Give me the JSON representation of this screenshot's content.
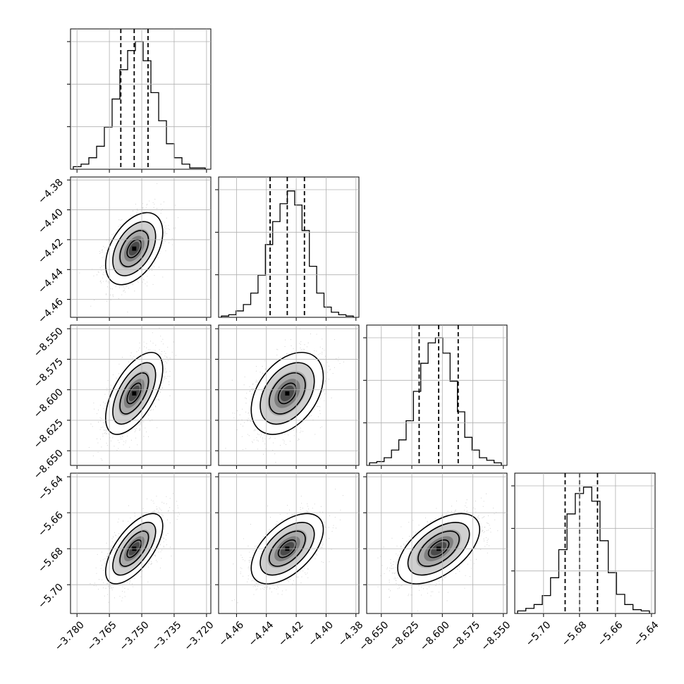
{
  "chart_data": {
    "type": "corner",
    "title": "",
    "parameters": [
      {
        "median": -3.7535,
        "q16": -3.7597,
        "q84": -3.7471,
        "range": [
          -3.783,
          -3.718
        ],
        "ticks": [
          -3.78,
          -3.765,
          -3.75,
          -3.735,
          -3.72
        ],
        "tick_labels": [
          "−3.780",
          "−3.765",
          "−3.750",
          "−3.735",
          "−3.720"
        ],
        "hist_counts": [
          0.02,
          0.04,
          0.09,
          0.18,
          0.33,
          0.55,
          0.78,
          0.93,
          1.0,
          0.85,
          0.6,
          0.38,
          0.2,
          0.09,
          0.04,
          0.01,
          0.01
        ]
      },
      {
        "median": -4.426,
        "q16": -4.4375,
        "q84": -4.4145,
        "range": [
          -4.472,
          -4.378
        ],
        "ticks": [
          -4.46,
          -4.44,
          -4.42,
          -4.4,
          -4.38
        ],
        "tick_labels": [
          "−4.46",
          "−4.44",
          "−4.42",
          "−4.40",
          "−4.38"
        ],
        "y_tick_labels": [
          "−4.46",
          "−4.44",
          "−4.42",
          "−4.40",
          "−4.38"
        ],
        "hist_counts": [
          0.01,
          0.02,
          0.05,
          0.1,
          0.19,
          0.33,
          0.57,
          0.75,
          0.89,
          0.99,
          0.88,
          0.68,
          0.4,
          0.19,
          0.08,
          0.04,
          0.02,
          0.01
        ]
      },
      {
        "median": -8.603,
        "q16": -8.619,
        "q84": -8.587,
        "range": [
          -8.662,
          -8.547
        ],
        "ticks": [
          -8.65,
          -8.625,
          -8.6,
          -8.575,
          -8.55
        ],
        "tick_labels": [
          "−8.650",
          "−8.625",
          "−8.600",
          "−8.575",
          "−8.550"
        ],
        "y_tick_labels": [
          "−8.650",
          "−8.625",
          "−8.600",
          "−8.575",
          "−8.550"
        ],
        "hist_counts": [
          0.02,
          0.03,
          0.06,
          0.12,
          0.2,
          0.35,
          0.58,
          0.8,
          0.96,
          1.0,
          0.88,
          0.66,
          0.42,
          0.22,
          0.12,
          0.06,
          0.04,
          0.02
        ]
      },
      {
        "median": -5.68,
        "q16": -5.688,
        "q84": -5.67,
        "range": [
          -5.716,
          -5.638
        ],
        "ticks": [
          -5.7,
          -5.68,
          -5.66,
          -5.64
        ],
        "tick_labels": [
          "−5.70",
          "−5.68",
          "−5.66",
          "−5.64"
        ],
        "y_tick_labels": [
          "−5.70",
          "−5.68",
          "−5.66",
          "−5.64"
        ],
        "hist_counts": [
          0.02,
          0.04,
          0.07,
          0.14,
          0.28,
          0.5,
          0.78,
          0.94,
          0.99,
          0.88,
          0.57,
          0.32,
          0.15,
          0.07,
          0.03,
          0.02
        ]
      }
    ],
    "sigma": [
      0.0063,
      0.0115,
      0.016,
      0.0093
    ],
    "correlations": [
      [
        1,
        0.45,
        0.6,
        0.65
      ],
      [
        0.45,
        1,
        0.4,
        0.55
      ],
      [
        0.6,
        0.4,
        1,
        0.55
      ],
      [
        0.65,
        0.55,
        0.55,
        1
      ]
    ],
    "contour_levels_sigma": [
      0.5,
      1.0,
      1.5,
      2.0
    ],
    "grid": true,
    "legend": "none"
  }
}
